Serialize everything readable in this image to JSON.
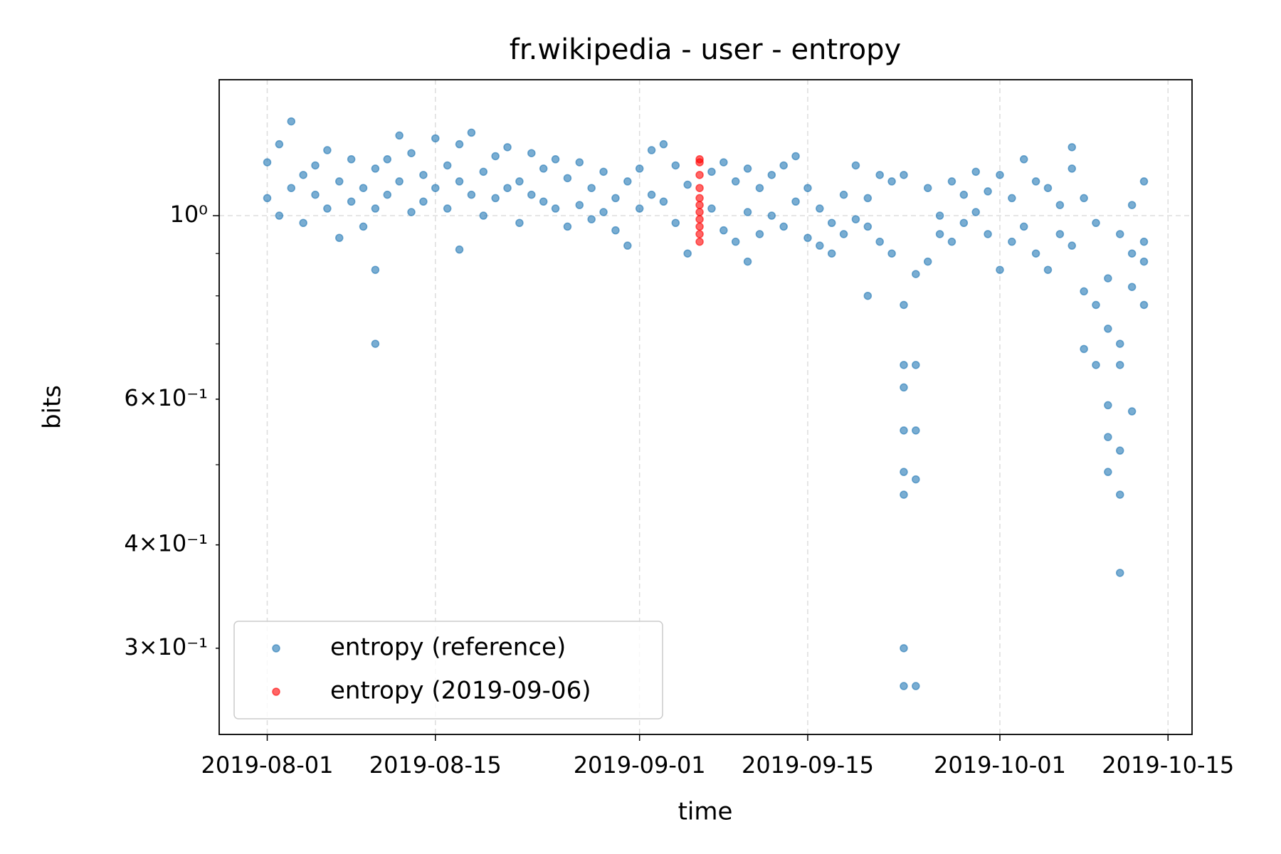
{
  "chart_data": {
    "type": "scatter",
    "title": "fr.wikipedia - user - entropy",
    "xlabel": "time",
    "ylabel": "bits",
    "yscale": "log",
    "grid": true,
    "legend_position": "lower left",
    "xlim": [
      "2019-07-28",
      "2019-10-17"
    ],
    "xticks": [
      "2019-08-01",
      "2019-08-15",
      "2019-09-01",
      "2019-09-15",
      "2019-10-01",
      "2019-10-15"
    ],
    "ylim": [
      0.236,
      1.46
    ],
    "yticks": [
      {
        "value": 1,
        "label": "10⁰"
      },
      {
        "value": 0.6,
        "label": "6×10⁻¹"
      },
      {
        "value": 0.4,
        "label": "4×10⁻¹"
      },
      {
        "value": 0.3,
        "label": "3×10⁻¹"
      }
    ],
    "yminorticks": [
      0.5,
      0.7,
      0.8,
      0.9
    ],
    "series": [
      {
        "name": "entropy (reference)",
        "color": "#1f77b4",
        "x": [
          "2019-08-01",
          "2019-08-01",
          "2019-08-02",
          "2019-08-02",
          "2019-08-03",
          "2019-08-03",
          "2019-08-04",
          "2019-08-04",
          "2019-08-05",
          "2019-08-05",
          "2019-08-06",
          "2019-08-06",
          "2019-08-07",
          "2019-08-07",
          "2019-08-08",
          "2019-08-08",
          "2019-08-09",
          "2019-08-09",
          "2019-08-10",
          "2019-08-10",
          "2019-08-10",
          "2019-08-10",
          "2019-08-11",
          "2019-08-11",
          "2019-08-12",
          "2019-08-12",
          "2019-08-13",
          "2019-08-13",
          "2019-08-14",
          "2019-08-14",
          "2019-08-15",
          "2019-08-15",
          "2019-08-16",
          "2019-08-16",
          "2019-08-17",
          "2019-08-17",
          "2019-08-17",
          "2019-08-18",
          "2019-08-18",
          "2019-08-19",
          "2019-08-19",
          "2019-08-20",
          "2019-08-20",
          "2019-08-21",
          "2019-08-21",
          "2019-08-22",
          "2019-08-22",
          "2019-08-23",
          "2019-08-23",
          "2019-08-24",
          "2019-08-24",
          "2019-08-25",
          "2019-08-25",
          "2019-08-26",
          "2019-08-26",
          "2019-08-27",
          "2019-08-27",
          "2019-08-28",
          "2019-08-28",
          "2019-08-29",
          "2019-08-29",
          "2019-08-30",
          "2019-08-30",
          "2019-08-31",
          "2019-08-31",
          "2019-09-01",
          "2019-09-01",
          "2019-09-02",
          "2019-09-02",
          "2019-09-03",
          "2019-09-03",
          "2019-09-04",
          "2019-09-04",
          "2019-09-05",
          "2019-09-05",
          "2019-09-07",
          "2019-09-07",
          "2019-09-08",
          "2019-09-08",
          "2019-09-09",
          "2019-09-09",
          "2019-09-10",
          "2019-09-10",
          "2019-09-10",
          "2019-09-11",
          "2019-09-11",
          "2019-09-12",
          "2019-09-12",
          "2019-09-13",
          "2019-09-13",
          "2019-09-14",
          "2019-09-14",
          "2019-09-15",
          "2019-09-15",
          "2019-09-16",
          "2019-09-16",
          "2019-09-17",
          "2019-09-17",
          "2019-09-18",
          "2019-09-18",
          "2019-09-19",
          "2019-09-19",
          "2019-09-20",
          "2019-09-20",
          "2019-09-20",
          "2019-09-21",
          "2019-09-21",
          "2019-09-22",
          "2019-09-22",
          "2019-09-23",
          "2019-09-23",
          "2019-09-23",
          "2019-09-23",
          "2019-09-23",
          "2019-09-23",
          "2019-09-23",
          "2019-09-23",
          "2019-09-23",
          "2019-09-24",
          "2019-09-24",
          "2019-09-24",
          "2019-09-24",
          "2019-09-24",
          "2019-09-25",
          "2019-09-25",
          "2019-09-26",
          "2019-09-26",
          "2019-09-27",
          "2019-09-27",
          "2019-09-28",
          "2019-09-28",
          "2019-09-29",
          "2019-09-29",
          "2019-09-30",
          "2019-09-30",
          "2019-10-01",
          "2019-10-01",
          "2019-10-02",
          "2019-10-02",
          "2019-10-03",
          "2019-10-03",
          "2019-10-04",
          "2019-10-04",
          "2019-10-05",
          "2019-10-05",
          "2019-10-06",
          "2019-10-06",
          "2019-10-07",
          "2019-10-07",
          "2019-10-07",
          "2019-10-08",
          "2019-10-08",
          "2019-10-08",
          "2019-10-09",
          "2019-10-09",
          "2019-10-09",
          "2019-10-10",
          "2019-10-10",
          "2019-10-10",
          "2019-10-10",
          "2019-10-10",
          "2019-10-11",
          "2019-10-11",
          "2019-10-11",
          "2019-10-11",
          "2019-10-11",
          "2019-10-11",
          "2019-10-12",
          "2019-10-12",
          "2019-10-12",
          "2019-10-12",
          "2019-10-13",
          "2019-10-13",
          "2019-10-13",
          "2019-10-13"
        ],
        "values": [
          1.05,
          1.16,
          1.22,
          1.0,
          1.3,
          1.08,
          1.12,
          0.98,
          1.06,
          1.15,
          1.2,
          1.02,
          0.94,
          1.1,
          1.17,
          1.04,
          1.08,
          0.97,
          1.14,
          0.86,
          0.7,
          1.02,
          1.17,
          1.06,
          1.25,
          1.1,
          1.01,
          1.19,
          1.12,
          1.04,
          1.24,
          1.08,
          1.15,
          1.02,
          1.22,
          0.91,
          1.1,
          1.26,
          1.06,
          1.13,
          1.0,
          1.18,
          1.05,
          1.21,
          1.08,
          1.1,
          0.98,
          1.19,
          1.06,
          1.14,
          1.04,
          1.17,
          1.02,
          1.11,
          0.97,
          1.16,
          1.03,
          1.08,
          0.99,
          1.13,
          1.01,
          1.05,
          0.96,
          1.1,
          0.92,
          1.14,
          1.02,
          1.2,
          1.06,
          1.22,
          1.04,
          1.15,
          0.98,
          1.09,
          0.9,
          1.13,
          1.02,
          1.16,
          0.96,
          1.1,
          0.93,
          1.14,
          0.88,
          1.01,
          1.08,
          0.95,
          1.12,
          1.0,
          1.15,
          0.97,
          1.18,
          1.04,
          1.08,
          0.94,
          1.02,
          0.92,
          0.98,
          0.9,
          1.06,
          0.95,
          1.15,
          0.99,
          0.8,
          1.05,
          0.97,
          1.12,
          0.93,
          1.1,
          0.9,
          0.78,
          0.66,
          0.62,
          0.55,
          0.49,
          0.46,
          0.3,
          0.27,
          1.12,
          0.66,
          0.55,
          0.48,
          0.27,
          0.85,
          1.08,
          0.88,
          1.0,
          0.95,
          1.1,
          0.93,
          1.06,
          0.98,
          1.13,
          1.01,
          1.07,
          0.95,
          1.12,
          0.86,
          1.05,
          0.93,
          1.17,
          0.97,
          1.1,
          0.9,
          1.08,
          0.86,
          1.03,
          0.95,
          1.14,
          1.21,
          0.92,
          1.05,
          0.81,
          0.69,
          0.98,
          0.78,
          0.66,
          0.84,
          0.59,
          0.54,
          0.49,
          0.73,
          0.7,
          0.52,
          0.46,
          0.37,
          0.66,
          0.95,
          0.58,
          0.82,
          0.9,
          1.03,
          0.88,
          0.78,
          1.1,
          0.93
        ]
      },
      {
        "name": "entropy (2019-09-06)",
        "color": "#ff0000",
        "x": [
          "2019-09-06",
          "2019-09-06",
          "2019-09-06",
          "2019-09-06",
          "2019-09-06",
          "2019-09-06",
          "2019-09-06",
          "2019-09-06",
          "2019-09-06",
          "2019-09-06",
          "2019-09-06"
        ],
        "values": [
          1.17,
          1.16,
          1.12,
          1.08,
          1.05,
          1.03,
          1.01,
          0.99,
          0.97,
          0.95,
          0.93
        ]
      }
    ]
  }
}
